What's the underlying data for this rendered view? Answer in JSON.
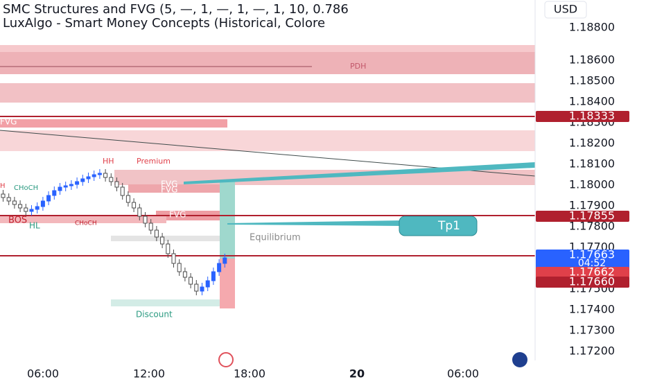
{
  "indicators": [
    "SMC Structures and FVG (5, —, 1, —, 1, —, 1, 10, 0.786",
    "LuxAlgo - Smart Money Concepts (Historical, Colore"
  ],
  "currency": "USD",
  "price_axis": [
    "1.18800",
    "1.18600",
    "1.18500",
    "1.18400",
    "1.18300",
    "1.18200",
    "1.18100",
    "1.18000",
    "1.17900",
    "1.17800",
    "1.17700",
    "1.17500",
    "1.17400",
    "1.17300",
    "1.17200"
  ],
  "price_tags": [
    {
      "label": "1.18333"
    },
    {
      "label": "1.17855"
    },
    {
      "label": "1.17663",
      "countdown": "04:52"
    },
    {
      "label": "1.17662"
    },
    {
      "label": "1.17660"
    }
  ],
  "time_axis": [
    "06:00",
    "12:00",
    "18:00",
    "20",
    "06:00"
  ],
  "chart_labels": [
    "PDH",
    "FVG",
    "HH",
    "Premium",
    "H",
    "CHoCH",
    "BOS",
    "HL",
    "CHoCH",
    "FVG",
    "FVG",
    "FVG",
    "Equilibrium",
    "Discount",
    "Tp1"
  ]
}
